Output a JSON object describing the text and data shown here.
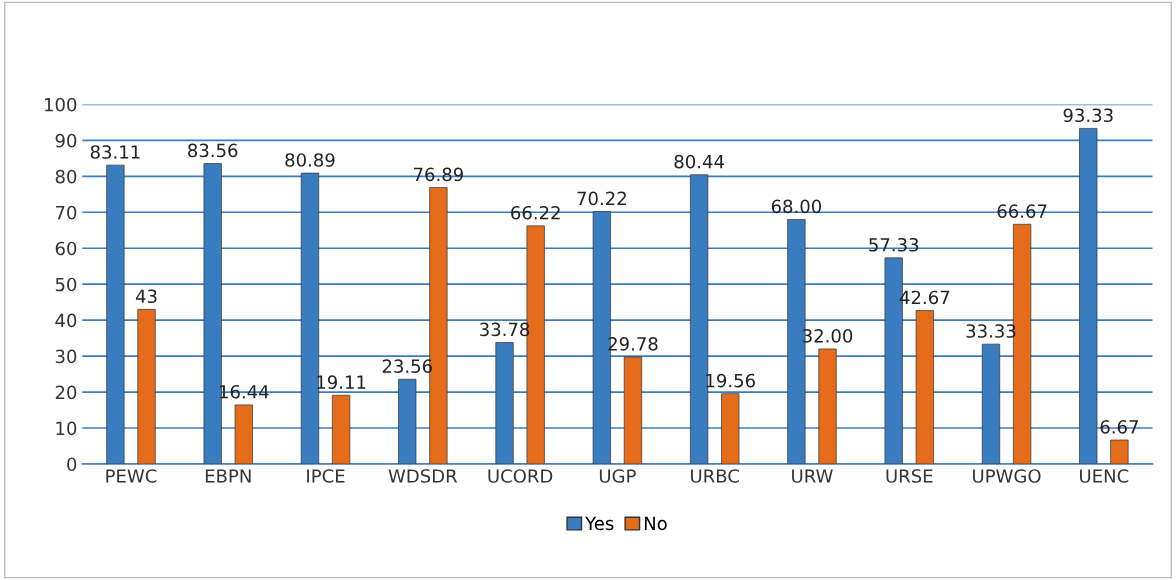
{
  "chart_data": {
    "type": "bar",
    "categories": [
      "PEWC",
      "EBPN",
      "IPCE",
      "WDSDR",
      "UCORD",
      "UGP",
      "URBC",
      "URW",
      "URSE",
      "UPWGO",
      "UENC"
    ],
    "series": [
      {
        "name": "Yes",
        "color": "#3a7cc0",
        "values": [
          83.11,
          83.56,
          80.89,
          23.56,
          33.78,
          70.22,
          80.44,
          68.0,
          57.33,
          33.33,
          93.33
        ],
        "value_labels": [
          "83.11",
          "83.56",
          "80.89",
          "23.56",
          "33.78",
          "70.22",
          "80.44",
          "68.00",
          "57.33",
          "33.33",
          "93.33"
        ]
      },
      {
        "name": "No",
        "color": "#e46c1a",
        "values": [
          43,
          16.44,
          19.11,
          76.89,
          66.22,
          29.78,
          19.56,
          32.0,
          42.67,
          66.67,
          6.67
        ],
        "value_labels": [
          "43",
          "16.44",
          "19.11",
          "76.89",
          "66.22",
          "29.78",
          "19.56",
          "32.00",
          "42.67",
          "66.67",
          "6.67"
        ]
      }
    ],
    "ylim": [
      0,
      100
    ],
    "yticks": [
      0,
      10,
      20,
      30,
      40,
      50,
      60,
      70,
      80,
      90,
      100
    ],
    "grid": "y",
    "legend": "bottom"
  }
}
